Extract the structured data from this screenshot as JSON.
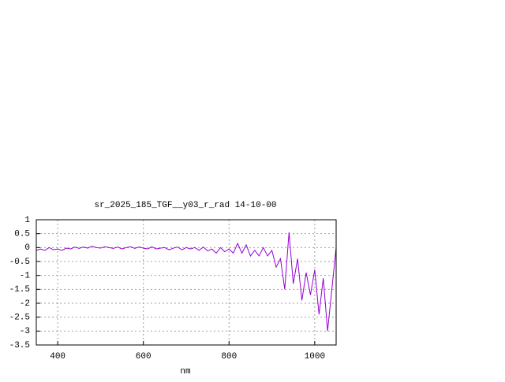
{
  "chart_data": {
    "type": "line",
    "title": "sr_2025_185_TGF__y03_r_rad 14-10-00",
    "x_label": "nm",
    "x": [
      350,
      360,
      370,
      380,
      390,
      400,
      410,
      420,
      430,
      440,
      450,
      460,
      470,
      480,
      490,
      500,
      510,
      520,
      530,
      540,
      550,
      560,
      570,
      580,
      590,
      600,
      610,
      620,
      630,
      640,
      650,
      660,
      670,
      680,
      690,
      700,
      710,
      720,
      730,
      740,
      750,
      760,
      770,
      780,
      790,
      800,
      810,
      820,
      830,
      840,
      850,
      860,
      870,
      880,
      890,
      900,
      910,
      920,
      930,
      940,
      950,
      960,
      970,
      980,
      990,
      1000,
      1010,
      1020,
      1030,
      1040,
      1050
    ],
    "series": [
      {
        "color": "#9400d3",
        "values": [
          -0.1,
          -0.05,
          -0.1,
          0,
          -0.08,
          -0.05,
          -0.1,
          -0.02,
          -0.05,
          0.02,
          -0.03,
          0.02,
          -0.02,
          0.05,
          0,
          -0.02,
          0.03,
          0,
          -0.03,
          0.02,
          -0.05,
          0,
          0.03,
          -0.03,
          0.02,
          -0.02,
          -0.05,
          0.03,
          -0.05,
          -0.02,
          0,
          -0.08,
          -0.02,
          0.02,
          -0.08,
          0,
          -0.05,
          0,
          -0.1,
          0.02,
          -0.12,
          -0.05,
          -0.2,
          0,
          -0.15,
          -0.05,
          -0.2,
          0.15,
          -0.2,
          0.1,
          -0.3,
          -0.1,
          -0.3,
          0,
          -0.3,
          -0.1,
          -0.7,
          -0.4,
          -1.5,
          0.55,
          -1.3,
          -0.4,
          -1.9,
          -0.9,
          -1.7,
          -0.8,
          -2.4,
          -1.1,
          -3,
          -1.5,
          0
        ]
      }
    ],
    "xlim": [
      350,
      1050
    ],
    "xticks": [
      400,
      600,
      800,
      1000
    ],
    "ylim": [
      -3.5,
      1
    ],
    "yticks": [
      1,
      0.5,
      0,
      -0.5,
      -1,
      -1.5,
      -2,
      -2.5,
      -3,
      -3.5
    ],
    "grid": true
  }
}
